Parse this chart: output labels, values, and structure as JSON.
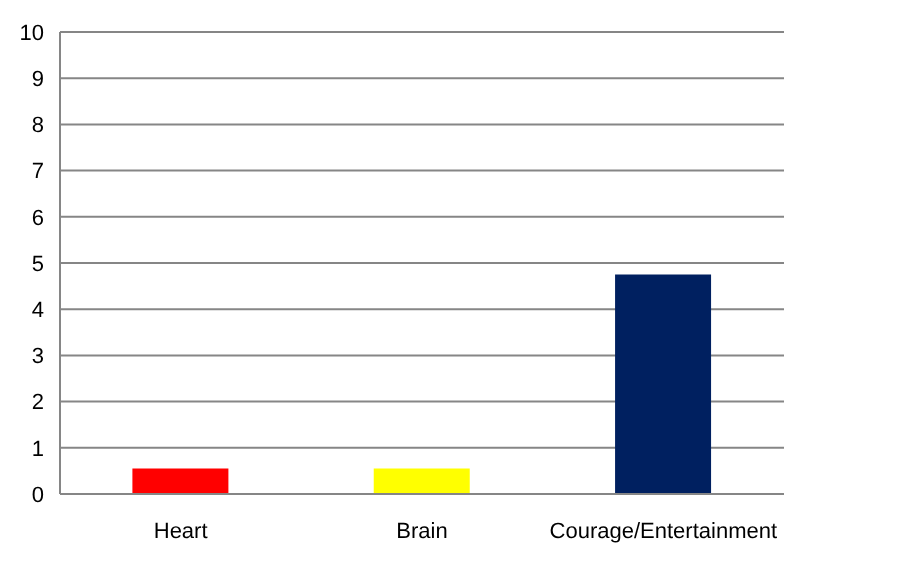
{
  "chart_data": {
    "type": "bar",
    "categories": [
      "Heart",
      "Brain",
      "Courage/Entertainment"
    ],
    "values": [
      0.55,
      0.55,
      4.75
    ],
    "colors": [
      "#ff0000",
      "#ffff00",
      "#002060"
    ],
    "ylim": [
      0,
      10
    ],
    "yticks": [
      0,
      1,
      2,
      3,
      4,
      5,
      6,
      7,
      8,
      9,
      10
    ],
    "grid": "y"
  }
}
